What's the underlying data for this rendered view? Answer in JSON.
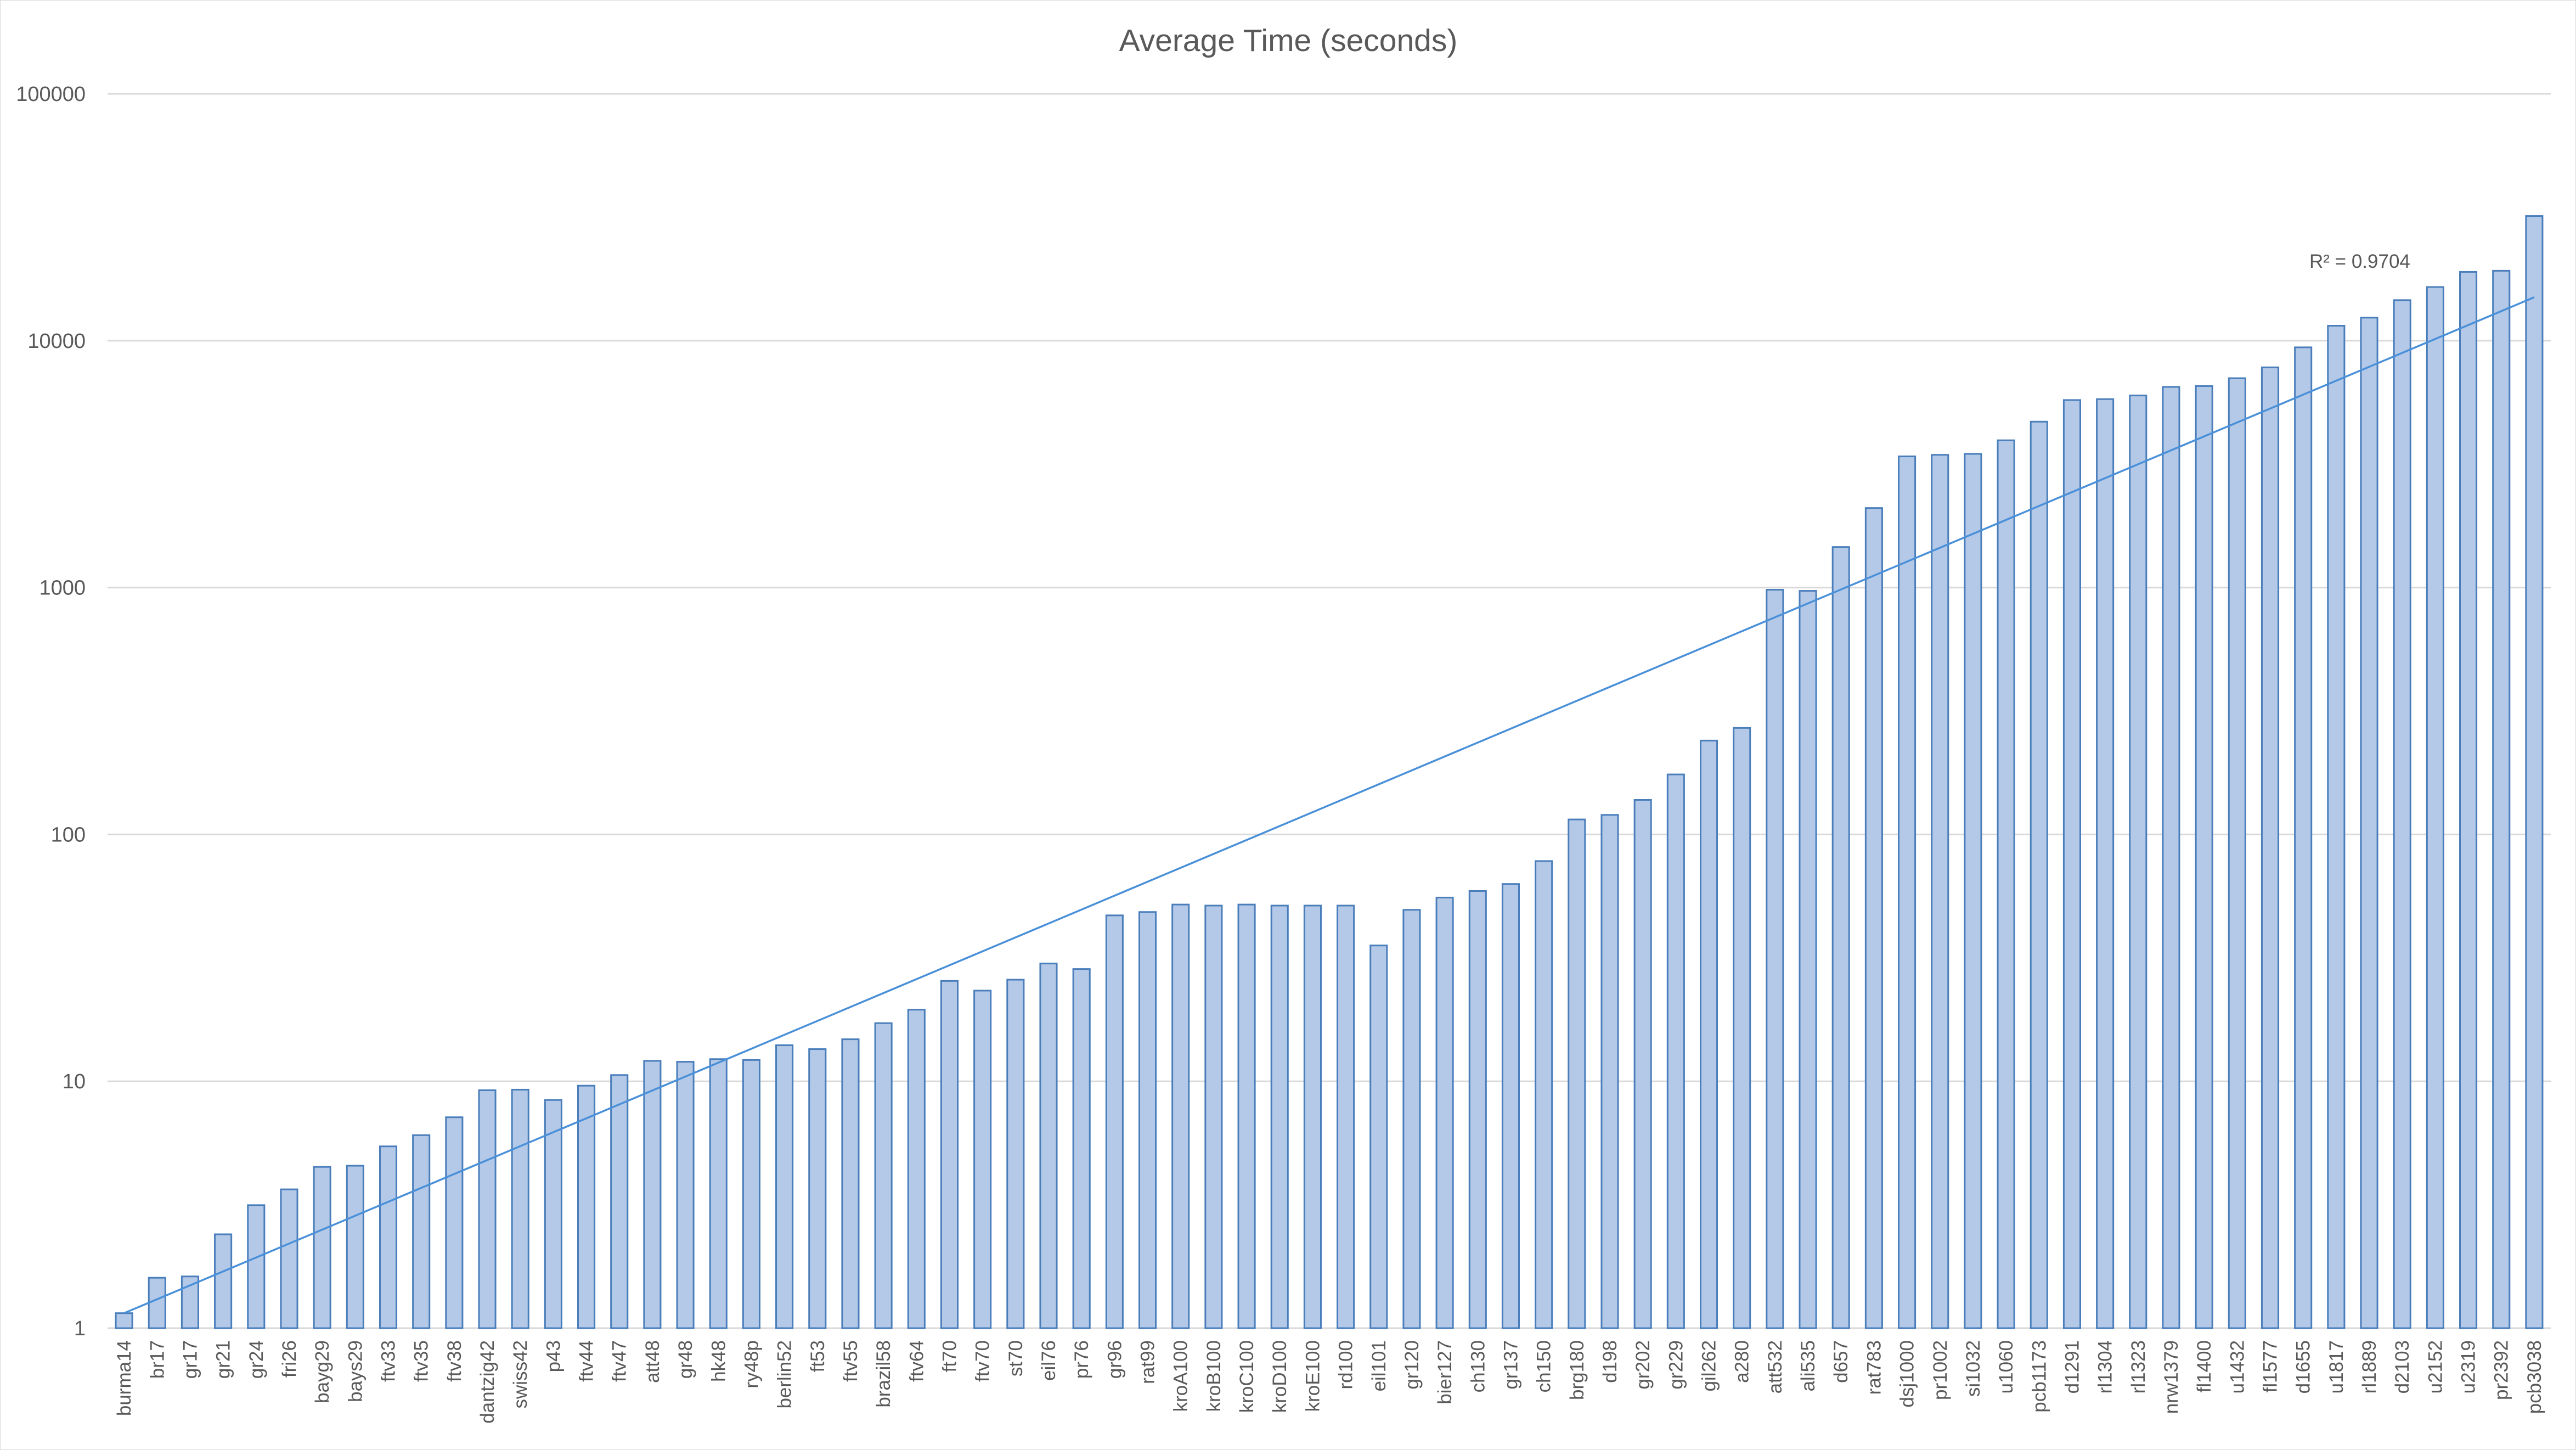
{
  "chart_data": {
    "type": "bar",
    "title": "Average Time (seconds)",
    "xlabel": "",
    "ylabel": "",
    "yscale": "log",
    "ylim": [
      1,
      100000
    ],
    "yticks": [
      1,
      10,
      100,
      1000,
      10000,
      100000
    ],
    "ytick_labels": [
      "1",
      "10",
      "100",
      "1000",
      "10000",
      "100000"
    ],
    "grid": true,
    "legend": "none",
    "colors": {
      "bar_fill": "#b4c9e8",
      "bar_stroke": "#4a7ebb",
      "trendline": "#4a90d9"
    },
    "trendline": {
      "type": "exponential",
      "r_squared_label": "R² = 0.9704",
      "start_value": 1.15,
      "end_value": 15000
    },
    "categories": [
      "burma14",
      "br17",
      "gr17",
      "gr21",
      "gr24",
      "fri26",
      "bayg29",
      "bays29",
      "ftv33",
      "ftv35",
      "ftv38",
      "dantzig42",
      "swiss42",
      "p43",
      "ftv44",
      "ftv47",
      "att48",
      "gr48",
      "hk48",
      "ry48p",
      "berlin52",
      "ft53",
      "ftv55",
      "brazil58",
      "ftv64",
      "ft70",
      "ftv70",
      "st70",
      "eil76",
      "pr76",
      "gr96",
      "rat99",
      "kroA100",
      "kroB100",
      "kroC100",
      "kroD100",
      "kroE100",
      "rd100",
      "eil101",
      "gr120",
      "bier127",
      "ch130",
      "gr137",
      "ch150",
      "brg180",
      "d198",
      "gr202",
      "gr229",
      "gil262",
      "a280",
      "att532",
      "ali535",
      "d657",
      "rat783",
      "dsj1000",
      "pr1002",
      "si1032",
      "u1060",
      "pcb1173",
      "d1291",
      "rl1304",
      "rl1323",
      "nrw1379",
      "fl1400",
      "u1432",
      "fl1577",
      "d1655",
      "u1817",
      "rl1889",
      "d2103",
      "u2152",
      "u2319",
      "pr2392",
      "pcb3038"
    ],
    "values": [
      1.15,
      1.6,
      1.62,
      2.4,
      3.15,
      3.65,
      4.5,
      4.55,
      5.45,
      6.05,
      7.15,
      9.2,
      9.25,
      8.4,
      9.6,
      10.6,
      12.1,
      12.0,
      12.3,
      12.2,
      14.0,
      13.5,
      14.8,
      17.2,
      19.5,
      25.5,
      23.3,
      25.8,
      30.0,
      28.5,
      47.0,
      48.5,
      52.0,
      51.5,
      52.0,
      51.5,
      51.5,
      51.5,
      35.5,
      49.5,
      55.5,
      59.0,
      63.0,
      78.0,
      115,
      120,
      138,
      175,
      240,
      270,
      980,
      970,
      1460,
      2100,
      3400,
      3450,
      3480,
      3950,
      4700,
      5750,
      5800,
      6000,
      6500,
      6550,
      7050,
      7800,
      9400,
      11500,
      12400,
      14600,
      16500,
      19000,
      19200,
      32000
    ]
  }
}
